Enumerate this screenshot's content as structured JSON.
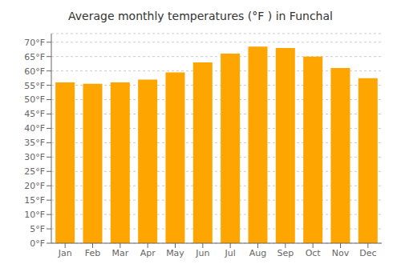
{
  "chart_data": {
    "type": "bar",
    "title": "Average monthly temperatures (°F ) in Funchal",
    "categories": [
      "Jan",
      "Feb",
      "Mar",
      "Apr",
      "May",
      "Jun",
      "Jul",
      "Aug",
      "Sep",
      "Oct",
      "Nov",
      "Dec"
    ],
    "values": [
      56,
      55.5,
      56,
      57,
      59.5,
      63,
      66,
      68.5,
      68,
      65,
      61,
      57.5
    ],
    "color": "#FFA500",
    "ylim": [
      0,
      73
    ],
    "yticks": [
      {
        "value": 0,
        "label": "0°F"
      },
      {
        "value": 5,
        "label": "5°F"
      },
      {
        "value": 10,
        "label": "10°F"
      },
      {
        "value": 15,
        "label": "15°F"
      },
      {
        "value": 20,
        "label": "20°F"
      },
      {
        "value": 25,
        "label": "25°F"
      },
      {
        "value": 30,
        "label": "30°F"
      },
      {
        "value": 35,
        "label": "35°F"
      },
      {
        "value": 40,
        "label": "40°F"
      },
      {
        "value": 45,
        "label": "45°F"
      },
      {
        "value": 50,
        "label": "50°F"
      },
      {
        "value": 55,
        "label": "55°F"
      },
      {
        "value": 60,
        "label": "60°F"
      },
      {
        "value": 65,
        "label": "65°F"
      },
      {
        "value": 70,
        "label": "70°F"
      }
    ],
    "grid": true
  }
}
